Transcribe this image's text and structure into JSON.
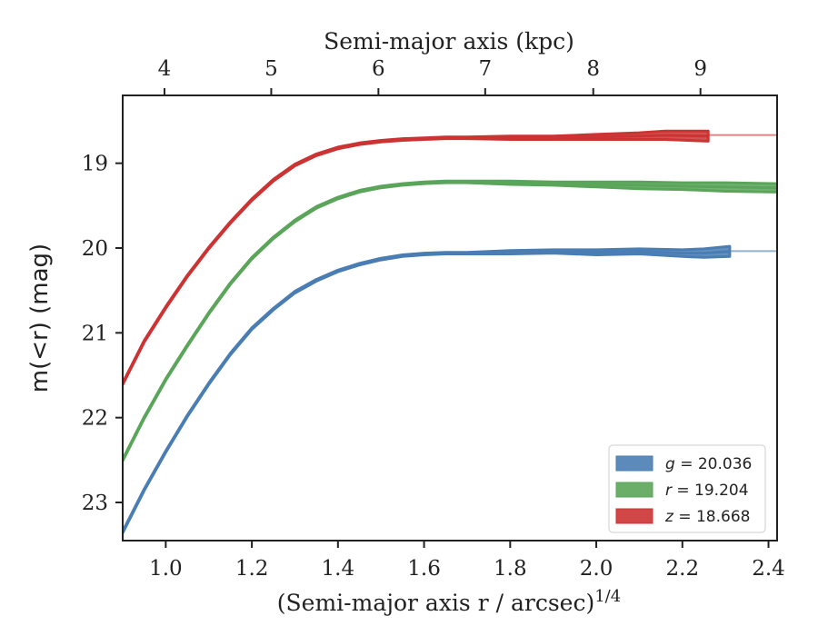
{
  "chart_data": {
    "type": "line",
    "xlabel": "(Semi-major axis r / arcsec)",
    "xlabel_exponent": "1/4",
    "ylabel": "m(<r) (mag)",
    "top_xlabel": "Semi-major axis (kpc)",
    "xlim": [
      0.9,
      2.42
    ],
    "ylim": [
      23.45,
      18.2
    ],
    "y_inverted": true,
    "x_ticks": [
      "1.0",
      "1.2",
      "1.4",
      "1.6",
      "1.8",
      "2.0",
      "2.2",
      "2.4"
    ],
    "y_ticks": [
      "19",
      "20",
      "21",
      "22",
      "23"
    ],
    "top_ticks": [
      {
        "label": "4",
        "x": 0.997
      },
      {
        "label": "5",
        "x": 1.245
      },
      {
        "label": "6",
        "x": 1.494
      },
      {
        "label": "7",
        "x": 1.742
      },
      {
        "label": "8",
        "x": 1.993
      },
      {
        "label": "9",
        "x": 2.242
      }
    ],
    "legend_position": "lower-right",
    "grid": false,
    "series": [
      {
        "name": "g = 20.036",
        "var": "g",
        "value": "20.036",
        "color": "#4a7db3",
        "asymptote": 20.036,
        "x": [
          0.9,
          0.95,
          1.0,
          1.05,
          1.1,
          1.15,
          1.2,
          1.25,
          1.3,
          1.35,
          1.4,
          1.45,
          1.5,
          1.55,
          1.6,
          1.65,
          1.7,
          1.8,
          1.9,
          2.0,
          2.1,
          2.2,
          2.25,
          2.31
        ],
        "y": [
          23.35,
          22.85,
          22.4,
          21.98,
          21.6,
          21.25,
          20.95,
          20.72,
          20.52,
          20.38,
          20.27,
          20.19,
          20.13,
          20.09,
          20.07,
          20.06,
          20.06,
          20.05,
          20.04,
          20.05,
          20.04,
          20.06,
          20.06,
          20.04
        ],
        "band": [
          0.01,
          0.01,
          0.01,
          0.01,
          0.01,
          0.01,
          0.01,
          0.01,
          0.01,
          0.01,
          0.01,
          0.01,
          0.01,
          0.01,
          0.01,
          0.01,
          0.01,
          0.02,
          0.02,
          0.03,
          0.03,
          0.04,
          0.05,
          0.06
        ]
      },
      {
        "name": "r = 19.204",
        "var": "r",
        "value": "19.204",
        "color": "#5aa55a",
        "asymptote": 19.204,
        "x": [
          0.9,
          0.95,
          1.0,
          1.05,
          1.1,
          1.15,
          1.2,
          1.25,
          1.3,
          1.35,
          1.4,
          1.45,
          1.5,
          1.55,
          1.6,
          1.65,
          1.7,
          1.8,
          1.9,
          2.0,
          2.1,
          2.2,
          2.3,
          2.42
        ],
        "y": [
          22.5,
          22.0,
          21.55,
          21.15,
          20.77,
          20.42,
          20.12,
          19.88,
          19.68,
          19.52,
          19.41,
          19.33,
          19.28,
          19.25,
          19.23,
          19.22,
          19.22,
          19.23,
          19.24,
          19.25,
          19.26,
          19.27,
          19.28,
          19.29
        ],
        "band": [
          0.01,
          0.01,
          0.01,
          0.01,
          0.01,
          0.01,
          0.01,
          0.01,
          0.01,
          0.01,
          0.01,
          0.01,
          0.01,
          0.01,
          0.01,
          0.01,
          0.01,
          0.02,
          0.02,
          0.03,
          0.04,
          0.04,
          0.05,
          0.05
        ]
      },
      {
        "name": "z = 18.668",
        "var": "z",
        "value": "18.668",
        "color": "#cc3333",
        "asymptote": 18.668,
        "x": [
          0.9,
          0.95,
          1.0,
          1.05,
          1.1,
          1.15,
          1.2,
          1.25,
          1.3,
          1.35,
          1.4,
          1.45,
          1.5,
          1.55,
          1.6,
          1.65,
          1.7,
          1.8,
          1.9,
          2.0,
          2.1,
          2.16,
          2.26
        ],
        "y": [
          21.6,
          21.1,
          20.7,
          20.33,
          20.0,
          19.7,
          19.43,
          19.2,
          19.02,
          18.9,
          18.82,
          18.77,
          18.74,
          18.72,
          18.71,
          18.7,
          18.7,
          18.7,
          18.7,
          18.69,
          18.68,
          18.67,
          18.68
        ],
        "band": [
          0.01,
          0.01,
          0.01,
          0.01,
          0.01,
          0.01,
          0.01,
          0.01,
          0.01,
          0.01,
          0.01,
          0.01,
          0.01,
          0.01,
          0.01,
          0.01,
          0.01,
          0.02,
          0.02,
          0.03,
          0.04,
          0.05,
          0.06
        ]
      }
    ]
  }
}
